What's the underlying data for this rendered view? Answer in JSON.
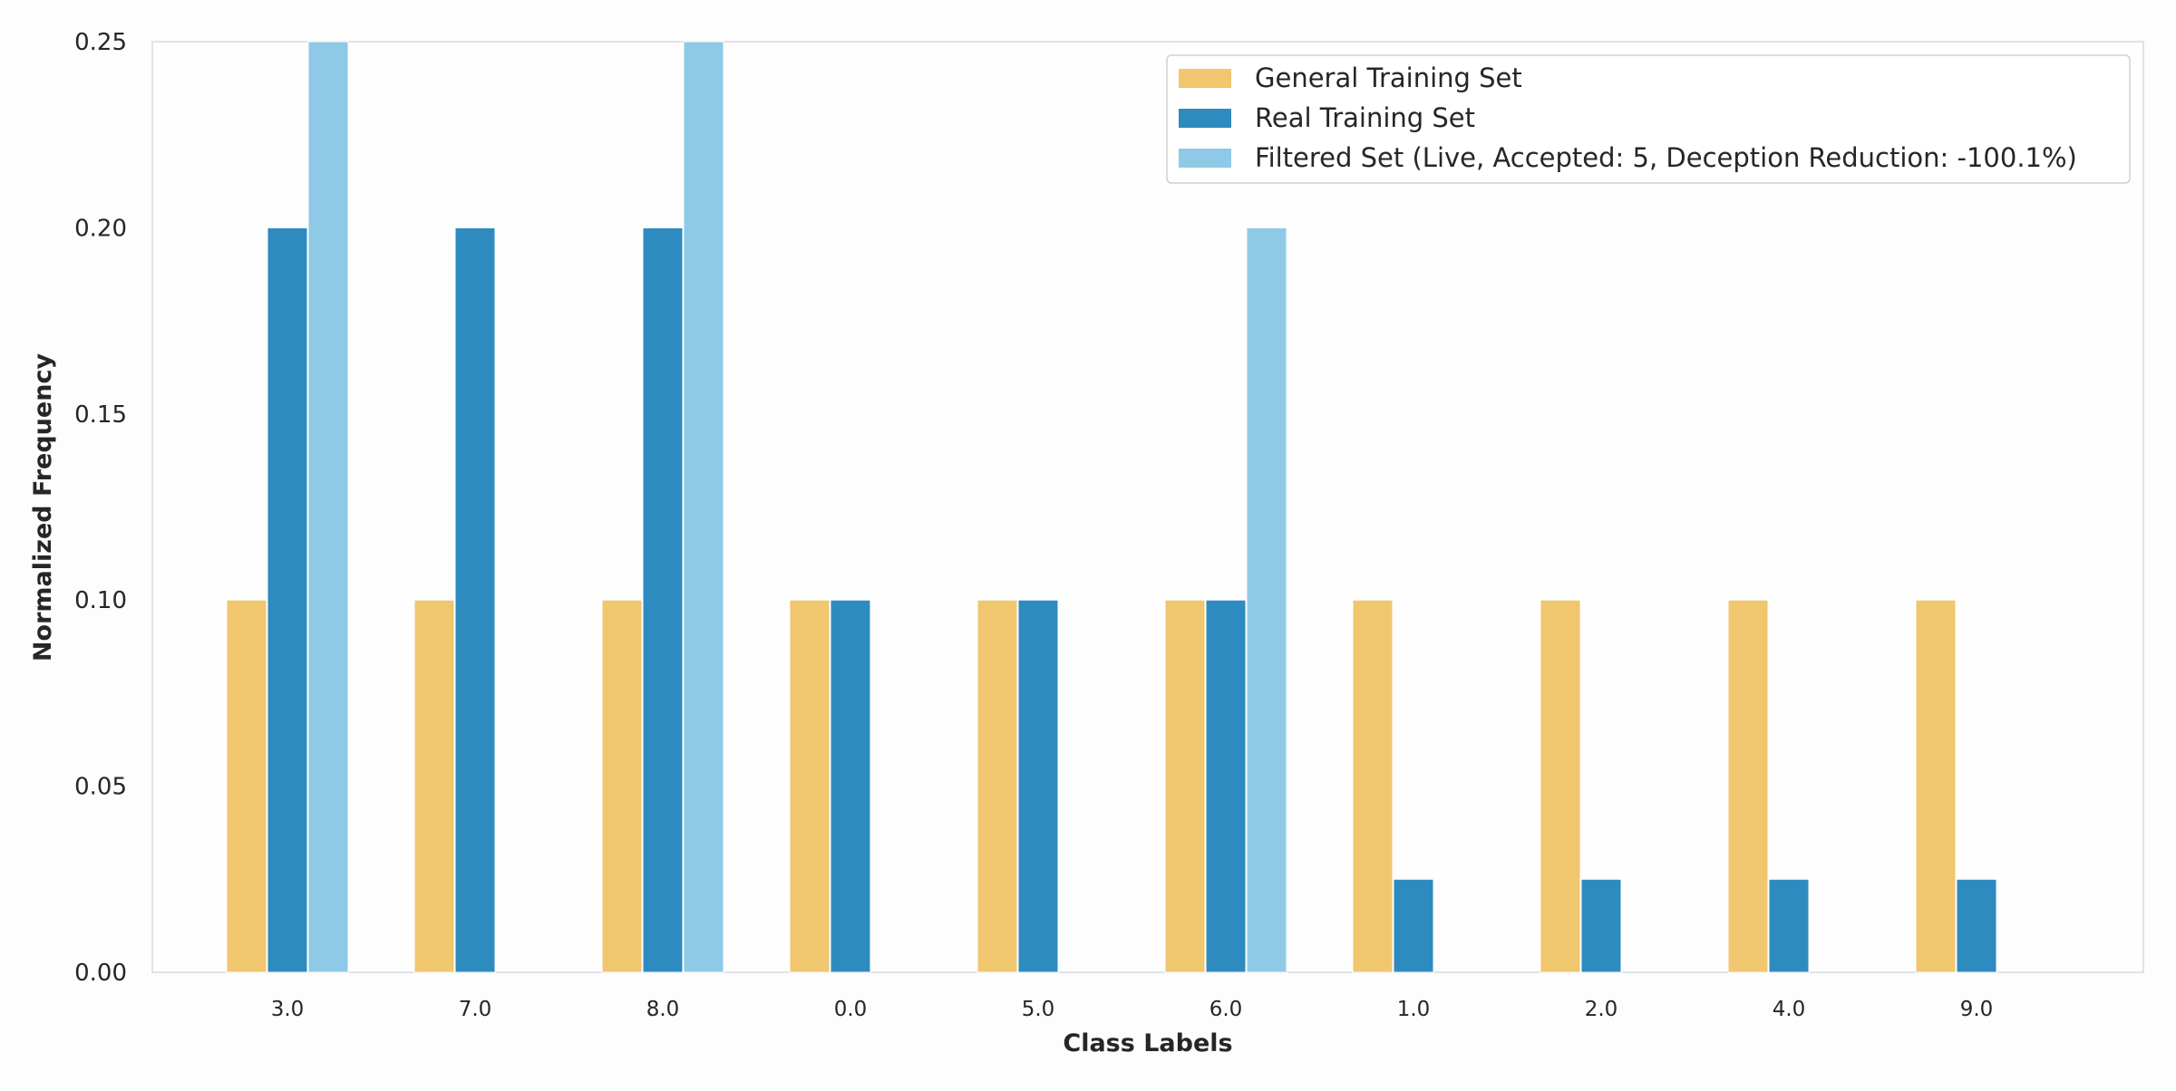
{
  "chart_data": {
    "type": "bar",
    "title": "",
    "xlabel": "Class Labels",
    "ylabel": "Normalized Frequency",
    "ylim": [
      0,
      0.25
    ],
    "yticks": [
      "0.00",
      "0.05",
      "0.10",
      "0.15",
      "0.20",
      "0.25"
    ],
    "categories": [
      "3.0",
      "7.0",
      "8.0",
      "0.0",
      "5.0",
      "6.0",
      "1.0",
      "2.0",
      "4.0",
      "9.0"
    ],
    "grid": false,
    "legend_position": "top-right",
    "series": [
      {
        "name": "General Training Set",
        "color": "#f0c66e",
        "values": [
          0.1,
          0.1,
          0.1,
          0.1,
          0.1,
          0.1,
          0.1,
          0.1,
          0.1,
          0.1
        ]
      },
      {
        "name": "Real Training Set",
        "color": "#2e8bc0",
        "values": [
          0.2,
          0.2,
          0.2,
          0.1,
          0.1,
          0.1,
          0.025,
          0.025,
          0.025,
          0.025
        ]
      },
      {
        "name": "Filtered Set (Live, Accepted: 5, Deception Reduction: -100.1%)",
        "color": "#8ecae6",
        "values": [
          0.25,
          0,
          0.25,
          0,
          0,
          0.2,
          0,
          0,
          0,
          0
        ]
      }
    ]
  }
}
